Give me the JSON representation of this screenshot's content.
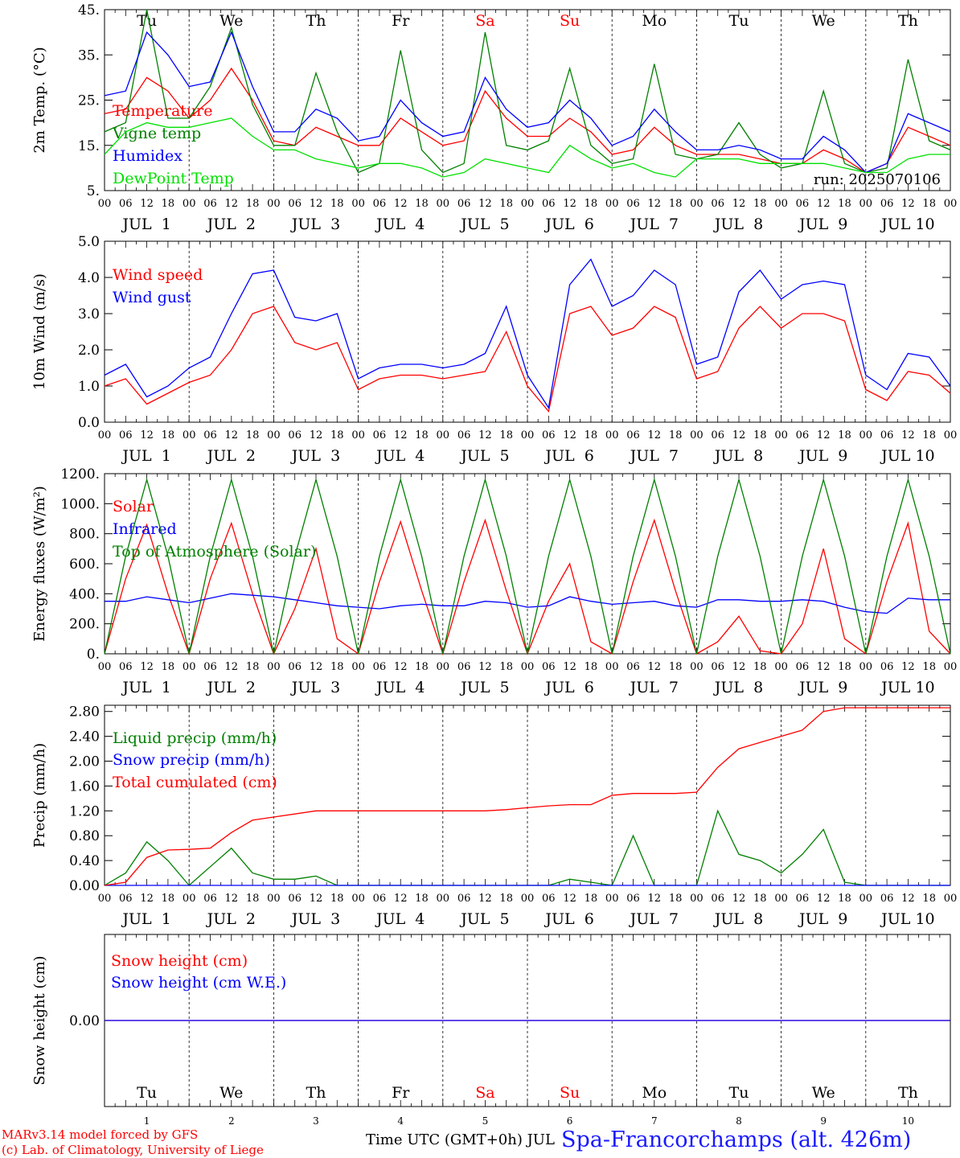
{
  "days": {
    "weekday_labels": [
      "Tu",
      "We",
      "Th",
      "Fr",
      "Sa",
      "Su",
      "Mo",
      "Tu",
      "We",
      "Th"
    ],
    "weekend_flags": [
      false,
      false,
      false,
      false,
      true,
      true,
      false,
      false,
      false,
      false
    ],
    "date_labels": [
      "JUL  1",
      "JUL  2",
      "JUL  3",
      "JUL  4",
      "JUL  5",
      "JUL  6",
      "JUL  7",
      "JUL  8",
      "JUL  9",
      "JUL 10"
    ],
    "day_numbers": [
      "1",
      "2",
      "3",
      "4",
      "5",
      "6",
      "7",
      "8",
      "9",
      "10"
    ],
    "hour_labels": [
      "00",
      "06",
      "12",
      "18"
    ],
    "final_hour_label": "00"
  },
  "colors": {
    "red": "#ff0000",
    "green": "#008000",
    "blue": "#0000ff",
    "lime": "#00e000",
    "black": "#000000"
  },
  "footer": {
    "model_line": "MARv3.14 model forced by GFS",
    "credit_line": "(c) Lab. of Climatology, University of Liege",
    "time_axis_label": "Time UTC (GMT+0h) JUL",
    "station": "Spa-Francorchamps (alt. 426m)"
  },
  "chart_data": [
    {
      "type": "line",
      "ylabel": "2m Temp. (°C)",
      "ylim": [
        5,
        45
      ],
      "yticks": [
        5,
        15,
        25,
        35,
        45
      ],
      "ytick_labels": [
        "5.",
        "15.",
        "25.",
        "35.",
        "45."
      ],
      "annotation": "run: 2025070106",
      "show_weekdays": true,
      "x_hours": [
        0,
        6,
        12,
        18,
        24,
        30,
        36,
        42,
        48,
        54,
        60,
        66,
        72,
        78,
        84,
        90,
        96,
        102,
        108,
        114,
        120,
        126,
        132,
        138,
        144,
        150,
        156,
        162,
        168,
        174,
        180,
        186,
        192,
        198,
        204,
        210,
        216,
        222,
        228,
        234,
        240
      ],
      "series": [
        {
          "name": "Temperature",
          "color": "red",
          "values": [
            22,
            23,
            30,
            27,
            21,
            25,
            32,
            25,
            16,
            15,
            19,
            17,
            15,
            15,
            21,
            18,
            15,
            16,
            27,
            21,
            17,
            17,
            21,
            18,
            13,
            14,
            19,
            15,
            13,
            13,
            13,
            12,
            11,
            11,
            14,
            12,
            9,
            11,
            19,
            17,
            15
          ]
        },
        {
          "name": "Vigne temp",
          "color": "green",
          "values": [
            18,
            20,
            45,
            21,
            21,
            28,
            41,
            24,
            15,
            15,
            31,
            18,
            9,
            11,
            36,
            14,
            9,
            11,
            40,
            15,
            14,
            16,
            32,
            15,
            11,
            12,
            33,
            13,
            12,
            13,
            20,
            13,
            10,
            11,
            27,
            11,
            9,
            10,
            34,
            16,
            14
          ]
        },
        {
          "name": "Humidex",
          "color": "blue",
          "values": [
            26,
            27,
            40,
            35,
            28,
            29,
            40,
            28,
            18,
            18,
            23,
            21,
            16,
            17,
            25,
            20,
            17,
            18,
            30,
            23,
            19,
            20,
            25,
            21,
            15,
            17,
            23,
            18,
            14,
            14,
            15,
            14,
            12,
            12,
            17,
            14,
            9,
            11,
            22,
            20,
            18
          ]
        },
        {
          "name": "DewPoint Temp",
          "color": "lime",
          "values": [
            13,
            18,
            20,
            19,
            19,
            20,
            21,
            17,
            14,
            14,
            12,
            11,
            10,
            11,
            11,
            10,
            8,
            9,
            12,
            11,
            10,
            9,
            15,
            12,
            10,
            11,
            9,
            8,
            12,
            12,
            12,
            11,
            11,
            11,
            11,
            10,
            9,
            9,
            12,
            13,
            13
          ]
        }
      ]
    },
    {
      "type": "line",
      "ylabel": "10m Wind (m/s)",
      "ylim": [
        0,
        5
      ],
      "yticks": [
        0,
        1,
        2,
        3,
        4,
        5
      ],
      "ytick_labels": [
        "0.0",
        "1.0",
        "2.0",
        "3.0",
        "4.0",
        "5.0"
      ],
      "x_hours": [
        0,
        6,
        12,
        18,
        24,
        30,
        36,
        42,
        48,
        54,
        60,
        66,
        72,
        78,
        84,
        90,
        96,
        102,
        108,
        114,
        120,
        126,
        132,
        138,
        144,
        150,
        156,
        162,
        168,
        174,
        180,
        186,
        192,
        198,
        204,
        210,
        216,
        222,
        228,
        234,
        240
      ],
      "series": [
        {
          "name": "Wind speed",
          "color": "red",
          "values": [
            1.0,
            1.2,
            0.5,
            0.8,
            1.1,
            1.3,
            2.0,
            3.0,
            3.2,
            2.2,
            2.0,
            2.2,
            0.9,
            1.2,
            1.3,
            1.3,
            1.2,
            1.3,
            1.4,
            2.5,
            1.0,
            0.3,
            3.0,
            3.2,
            2.4,
            2.6,
            3.2,
            2.9,
            1.2,
            1.4,
            2.6,
            3.2,
            2.6,
            3.0,
            3.0,
            2.8,
            0.9,
            0.6,
            1.4,
            1.3,
            0.8
          ]
        },
        {
          "name": "Wind gust",
          "color": "blue",
          "values": [
            1.3,
            1.6,
            0.7,
            1.0,
            1.5,
            1.8,
            3.0,
            4.1,
            4.2,
            2.9,
            2.8,
            3.0,
            1.2,
            1.5,
            1.6,
            1.6,
            1.5,
            1.6,
            1.9,
            3.2,
            1.3,
            0.4,
            3.8,
            4.5,
            3.2,
            3.5,
            4.2,
            3.8,
            1.6,
            1.8,
            3.6,
            4.2,
            3.4,
            3.8,
            3.9,
            3.8,
            1.3,
            0.9,
            1.9,
            1.8,
            1.0
          ]
        }
      ]
    },
    {
      "type": "line",
      "ylabel": "Energy fluxes (W/m²)",
      "ylim": [
        0,
        1200
      ],
      "yticks": [
        0,
        200,
        400,
        600,
        800,
        1000,
        1200
      ],
      "ytick_labels": [
        "0.",
        "200.",
        "400.",
        "600.",
        "800.",
        "1000.",
        "1200."
      ],
      "x_hours": [
        0,
        6,
        12,
        18,
        24,
        30,
        36,
        42,
        48,
        54,
        60,
        66,
        72,
        78,
        84,
        90,
        96,
        102,
        108,
        114,
        120,
        126,
        132,
        138,
        144,
        150,
        156,
        162,
        168,
        174,
        180,
        186,
        192,
        198,
        204,
        210,
        216,
        222,
        228,
        234,
        240
      ],
      "series": [
        {
          "name": "Solar",
          "color": "red",
          "values": [
            0,
            500,
            860,
            400,
            0,
            500,
            870,
            400,
            0,
            300,
            700,
            100,
            0,
            480,
            880,
            420,
            0,
            480,
            890,
            420,
            0,
            350,
            600,
            80,
            0,
            480,
            890,
            420,
            0,
            80,
            250,
            20,
            0,
            200,
            700,
            100,
            0,
            480,
            870,
            150,
            0
          ]
        },
        {
          "name": "Infrared",
          "color": "blue",
          "values": [
            350,
            350,
            380,
            360,
            340,
            370,
            400,
            390,
            380,
            360,
            340,
            320,
            310,
            300,
            320,
            330,
            320,
            320,
            350,
            340,
            310,
            320,
            380,
            350,
            330,
            340,
            350,
            320,
            310,
            360,
            360,
            350,
            350,
            360,
            350,
            310,
            280,
            270,
            370,
            360,
            360
          ]
        },
        {
          "name": "Top of Atmosphere (Solar)",
          "color": "green",
          "values": [
            0,
            650,
            1160,
            650,
            0,
            650,
            1160,
            650,
            0,
            650,
            1160,
            650,
            0,
            650,
            1160,
            650,
            0,
            650,
            1160,
            650,
            0,
            650,
            1160,
            650,
            0,
            650,
            1160,
            650,
            0,
            650,
            1160,
            650,
            0,
            650,
            1160,
            650,
            0,
            650,
            1160,
            650,
            0
          ]
        }
      ]
    },
    {
      "type": "line",
      "ylabel": "Precip (mm/h)",
      "ylim": [
        0,
        2.9
      ],
      "yticks": [
        0,
        0.4,
        0.8,
        1.2,
        1.6,
        2.0,
        2.4,
        2.8
      ],
      "ytick_labels": [
        "0.00",
        "0.40",
        "0.80",
        "1.20",
        "1.60",
        "2.00",
        "2.40",
        "2.80"
      ],
      "x_hours": [
        0,
        6,
        12,
        18,
        24,
        30,
        36,
        42,
        48,
        54,
        60,
        66,
        72,
        78,
        84,
        90,
        96,
        102,
        108,
        114,
        120,
        126,
        132,
        138,
        144,
        150,
        156,
        162,
        168,
        174,
        180,
        186,
        192,
        198,
        204,
        210,
        216,
        222,
        228,
        234,
        240
      ],
      "series": [
        {
          "name": "Liquid precip (mm/h)",
          "color": "green",
          "values": [
            0,
            0.2,
            0.7,
            0.4,
            0,
            0.3,
            0.6,
            0.2,
            0.1,
            0.1,
            0.15,
            0,
            0,
            0,
            0,
            0,
            0,
            0,
            0,
            0,
            0,
            0,
            0.1,
            0.05,
            0,
            0.8,
            0,
            0,
            0,
            1.2,
            0.5,
            0.4,
            0.2,
            0.5,
            0.9,
            0.05,
            0,
            0,
            0,
            0,
            0
          ]
        },
        {
          "name": "Snow precip (mm/h)",
          "color": "blue",
          "values": [
            0,
            0,
            0,
            0,
            0,
            0,
            0,
            0,
            0,
            0,
            0,
            0,
            0,
            0,
            0,
            0,
            0,
            0,
            0,
            0,
            0,
            0,
            0,
            0,
            0,
            0,
            0,
            0,
            0,
            0,
            0,
            0,
            0,
            0,
            0,
            0,
            0,
            0,
            0,
            0,
            0
          ]
        },
        {
          "name": "Total cumulated (cm)",
          "color": "red",
          "values": [
            0,
            0.05,
            0.45,
            0.57,
            0.58,
            0.6,
            0.85,
            1.05,
            1.1,
            1.15,
            1.2,
            1.2,
            1.2,
            1.2,
            1.2,
            1.2,
            1.2,
            1.2,
            1.2,
            1.22,
            1.25,
            1.28,
            1.3,
            1.3,
            1.45,
            1.48,
            1.48,
            1.48,
            1.5,
            1.9,
            2.2,
            2.3,
            2.4,
            2.5,
            2.8,
            2.86,
            2.86,
            2.86,
            2.86,
            2.86,
            2.86
          ]
        }
      ]
    },
    {
      "type": "line",
      "ylabel": "Snow height (cm)",
      "ylim": [
        -1,
        1
      ],
      "yticks": [
        0
      ],
      "ytick_labels": [
        "0.00"
      ],
      "show_weekdays_bottom": true,
      "x_hours": [
        0,
        240
      ],
      "series": [
        {
          "name": "Snow height (cm)",
          "color": "red",
          "values": [
            0,
            0
          ]
        },
        {
          "name": "Snow height (cm W.E.)",
          "color": "blue",
          "values": [
            0,
            0
          ]
        }
      ]
    }
  ]
}
